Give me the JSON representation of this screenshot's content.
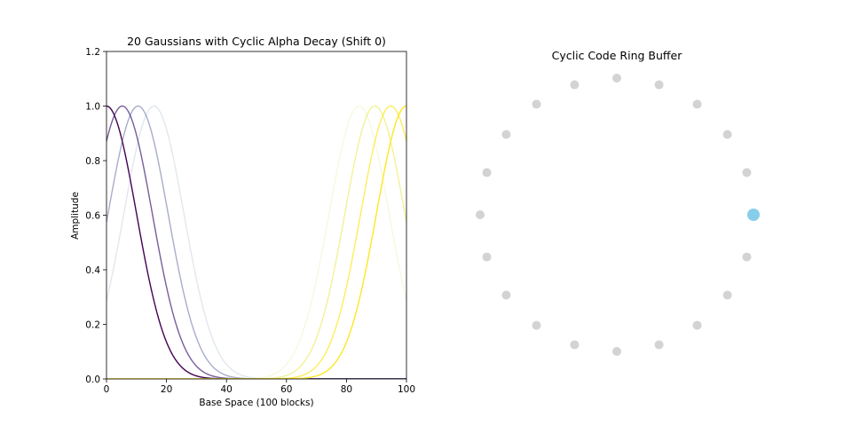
{
  "chart_data": [
    {
      "type": "line",
      "title": "20 Gaussians with Cyclic Alpha Decay (Shift 0)",
      "xlabel": "Base Space (100 blocks)",
      "ylabel": "Amplitude",
      "xlim": [
        0,
        100
      ],
      "ylim": [
        0,
        1.2
      ],
      "xticks": [
        "0",
        "20",
        "40",
        "60",
        "80",
        "100"
      ],
      "yticks": [
        "0.0",
        "0.2",
        "0.4",
        "0.6",
        "0.8",
        "1.0",
        "1.2"
      ],
      "grid": false,
      "legend": "none",
      "series": [
        {
          "center": 0,
          "sigma": 10,
          "color": "#440154",
          "opacity": 1.0
        },
        {
          "center": 5.26,
          "sigma": 10,
          "color": "#482878",
          "opacity": 0.75
        },
        {
          "center": 10.53,
          "sigma": 10,
          "color": "#3e4989",
          "opacity": 0.45
        },
        {
          "center": 15.79,
          "sigma": 10,
          "color": "#31688e",
          "opacity": 0.15
        },
        {
          "center": 84.21,
          "sigma": 10,
          "color": "#b5de2b",
          "opacity": 0.15
        },
        {
          "center": 89.47,
          "sigma": 10,
          "color": "#dde318",
          "opacity": 0.45
        },
        {
          "center": 94.74,
          "sigma": 10,
          "color": "#fde725",
          "opacity": 0.75
        },
        {
          "center": 100,
          "sigma": 10,
          "color": "#fde725",
          "opacity": 1.0
        }
      ]
    },
    {
      "type": "scatter",
      "title": "Cyclic Code Ring Buffer",
      "node_count": 20,
      "active_index": 0,
      "inactive_color": "#d3d3d3",
      "active_color": "#87ceeb"
    }
  ]
}
